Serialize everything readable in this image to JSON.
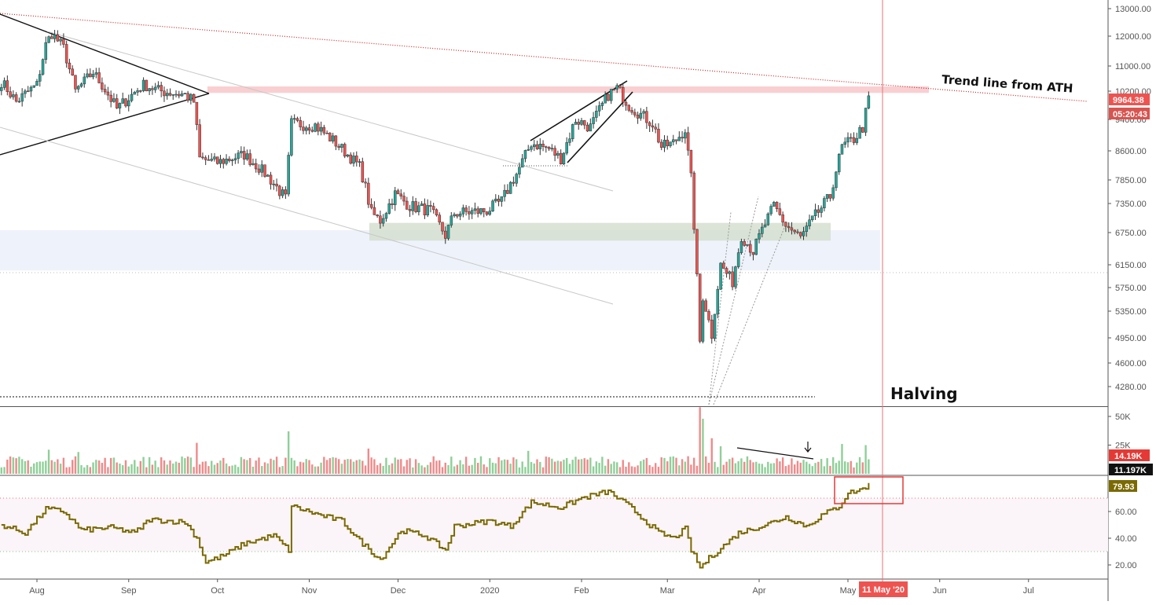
{
  "chart_data": [
    {
      "type": "candlestick",
      "pane": "price",
      "title": "",
      "ylim": [
        4100,
        13200
      ],
      "y_ticks": [
        13000,
        12000,
        11000,
        10200,
        9400,
        8600,
        7850,
        7350,
        6750,
        6150,
        5750,
        5350,
        4950,
        4600,
        4280
      ],
      "y_tick_labels": [
        "13000.00",
        "12000.00",
        "11000.00",
        "10200.00",
        "9400.00",
        "8600.00",
        "7850.00",
        "7350.00",
        "6750.00",
        "6150.00",
        "5750.00",
        "5350.00",
        "4950.00",
        "4600.00",
        "4280.00"
      ],
      "price_path": [
        [
          "2019-07-20",
          10500
        ],
        [
          "2019-07-25",
          9900
        ],
        [
          "2019-08-01",
          10400
        ],
        [
          "2019-08-04",
          11700
        ],
        [
          "2019-08-06",
          12100
        ],
        [
          "2019-08-10",
          11600
        ],
        [
          "2019-08-14",
          10200
        ],
        [
          "2019-08-20",
          10800
        ],
        [
          "2019-08-28",
          9700
        ],
        [
          "2019-09-06",
          10400
        ],
        [
          "2019-09-12",
          10200
        ],
        [
          "2019-09-20",
          10100
        ],
        [
          "2019-09-23",
          9900
        ],
        [
          "2019-09-25",
          8400
        ],
        [
          "2019-10-01",
          8300
        ],
        [
          "2019-10-10",
          8500
        ],
        [
          "2019-10-16",
          8100
        ],
        [
          "2019-10-24",
          7450
        ],
        [
          "2019-10-26",
          9300
        ],
        [
          "2019-11-03",
          9250
        ],
        [
          "2019-11-10",
          8800
        ],
        [
          "2019-11-18",
          8200
        ],
        [
          "2019-11-22",
          7150
        ],
        [
          "2019-11-25",
          7000
        ],
        [
          "2019-11-30",
          7550
        ],
        [
          "2019-12-05",
          7300
        ],
        [
          "2019-12-12",
          7200
        ],
        [
          "2019-12-17",
          6700
        ],
        [
          "2019-12-20",
          7150
        ],
        [
          "2019-12-31",
          7200
        ],
        [
          "2020-01-05",
          7400
        ],
        [
          "2020-01-10",
          8000
        ],
        [
          "2020-01-15",
          8800
        ],
        [
          "2020-01-21",
          8650
        ],
        [
          "2020-01-25",
          8400
        ],
        [
          "2020-01-30",
          9400
        ],
        [
          "2020-02-04",
          9200
        ],
        [
          "2020-02-10",
          10100
        ],
        [
          "2020-02-13",
          10300
        ],
        [
          "2020-02-17",
          9800
        ],
        [
          "2020-02-20",
          9600
        ],
        [
          "2020-02-25",
          9300
        ],
        [
          "2020-02-28",
          8700
        ],
        [
          "2020-03-03",
          8800
        ],
        [
          "2020-03-07",
          9150
        ],
        [
          "2020-03-09",
          7900
        ],
        [
          "2020-03-12",
          4900
        ],
        [
          "2020-03-13",
          5600
        ],
        [
          "2020-03-16",
          5000
        ],
        [
          "2020-03-19",
          6150
        ],
        [
          "2020-03-23",
          5850
        ],
        [
          "2020-03-26",
          6700
        ],
        [
          "2020-03-30",
          6400
        ],
        [
          "2020-04-02",
          6800
        ],
        [
          "2020-04-06",
          7300
        ],
        [
          "2020-04-10",
          6900
        ],
        [
          "2020-04-15",
          6650
        ],
        [
          "2020-04-20",
          7100
        ],
        [
          "2020-04-25",
          7500
        ],
        [
          "2020-04-29",
          8700
        ],
        [
          "2020-05-03",
          8900
        ],
        [
          "2020-05-06",
          9200
        ],
        [
          "2020-05-08",
          9964
        ]
      ],
      "last_price": "9964.38",
      "last_price_countdown": "05:20:43"
    },
    {
      "type": "bar",
      "pane": "volume",
      "ylim": [
        0,
        56000
      ],
      "y_ticks": [
        50000,
        25000
      ],
      "y_tick_labels": [
        "50K",
        "25K"
      ],
      "typical_volume": 11000,
      "spikes": [
        [
          "2019-08-05",
          21000
        ],
        [
          "2019-08-15",
          19000
        ],
        [
          "2019-09-24",
          27000
        ],
        [
          "2019-10-25",
          37000
        ],
        [
          "2019-11-21",
          22000
        ],
        [
          "2020-01-14",
          20000
        ],
        [
          "2020-03-12",
          58000
        ],
        [
          "2020-03-13",
          48000
        ],
        [
          "2020-03-16",
          31000
        ],
        [
          "2020-03-19",
          24000
        ],
        [
          "2020-04-29",
          26000
        ],
        [
          "2020-05-07",
          25000
        ]
      ],
      "tag_value_1": "14.19K",
      "tag_value_2": "11.197K"
    },
    {
      "type": "line",
      "pane": "rsi",
      "ylim": [
        10,
        90
      ],
      "y_ticks": [
        60,
        40,
        20
      ],
      "y_tick_labels": [
        "60.00",
        "40.00",
        "20.00"
      ],
      "upper_band": 70,
      "lower_band": 30,
      "rsi_path": [
        [
          "2019-07-20",
          50
        ],
        [
          "2019-07-28",
          44
        ],
        [
          "2019-08-04",
          62
        ],
        [
          "2019-08-10",
          60
        ],
        [
          "2019-08-16",
          46
        ],
        [
          "2019-08-26",
          48
        ],
        [
          "2019-09-03",
          44
        ],
        [
          "2019-09-08",
          54
        ],
        [
          "2019-09-20",
          52
        ],
        [
          "2019-09-24",
          40
        ],
        [
          "2019-09-27",
          22
        ],
        [
          "2019-10-03",
          27
        ],
        [
          "2019-10-10",
          36
        ],
        [
          "2019-10-20",
          42
        ],
        [
          "2019-10-25",
          31
        ],
        [
          "2019-10-26",
          64
        ],
        [
          "2019-11-05",
          57
        ],
        [
          "2019-11-12",
          53
        ],
        [
          "2019-11-18",
          38
        ],
        [
          "2019-11-25",
          24
        ],
        [
          "2019-12-02",
          46
        ],
        [
          "2019-12-10",
          42
        ],
        [
          "2019-12-17",
          31
        ],
        [
          "2019-12-20",
          49
        ],
        [
          "2020-01-01",
          53
        ],
        [
          "2020-01-08",
          49
        ],
        [
          "2020-01-15",
          67
        ],
        [
          "2020-01-25",
          63
        ],
        [
          "2020-02-01",
          70
        ],
        [
          "2020-02-10",
          75
        ],
        [
          "2020-02-17",
          64
        ],
        [
          "2020-02-27",
          44
        ],
        [
          "2020-03-03",
          40
        ],
        [
          "2020-03-07",
          47
        ],
        [
          "2020-03-09",
          31
        ],
        [
          "2020-03-12",
          18
        ],
        [
          "2020-03-15",
          25
        ],
        [
          "2020-03-25",
          44
        ],
        [
          "2020-04-03",
          50
        ],
        [
          "2020-04-10",
          56
        ],
        [
          "2020-04-17",
          49
        ],
        [
          "2020-04-22",
          57
        ],
        [
          "2020-04-28",
          64
        ],
        [
          "2020-05-01",
          74
        ],
        [
          "2020-05-05",
          76
        ],
        [
          "2020-05-08",
          79.93
        ]
      ],
      "last_value": "79.93"
    }
  ],
  "x_axis": {
    "labels": [
      {
        "date": "2019-08-01",
        "text": "Aug"
      },
      {
        "date": "2019-09-01",
        "text": "Sep"
      },
      {
        "date": "2019-10-01",
        "text": "Oct"
      },
      {
        "date": "2019-11-01",
        "text": "Nov"
      },
      {
        "date": "2019-12-01",
        "text": "Dec"
      },
      {
        "date": "2020-01-01",
        "text": "2020"
      },
      {
        "date": "2020-02-01",
        "text": "Feb"
      },
      {
        "date": "2020-03-01",
        "text": "Mar"
      },
      {
        "date": "2020-04-01",
        "text": "Apr"
      },
      {
        "date": "2020-05-01",
        "text": "May"
      },
      {
        "date": "2020-06-01",
        "text": "Jun"
      },
      {
        "date": "2020-07-01",
        "text": "Jul"
      }
    ],
    "highlight_label": "11 May '20",
    "highlight_date": "2020-05-11"
  },
  "annotations": {
    "trend_label": "Trend line from ATH",
    "halving_label": "Halving",
    "halving_date": "2020-05-11",
    "resistance_zone": [
      10150,
      10350
    ],
    "support_zone_green": [
      6600,
      6950
    ],
    "support_zone_blue": [
      6050,
      6800
    ]
  },
  "colors": {
    "up": "#26a69a",
    "down": "#ef5350",
    "volume_up": "#8fcf98",
    "volume_down": "#ef8a8a",
    "rsi_line": "#7a6a00",
    "trend_dotted": "#c62828",
    "halving_line": "#e57373",
    "resistance_zone": "#f9cfd2",
    "green_zone": "#d5dfcf",
    "blue_zone": "#eef2fb",
    "price_tag": "#ef5350",
    "countdown_tag": "#d9534f",
    "volume_tag_red": "#e53935",
    "volume_tag_black": "#111111",
    "rsi_tag": "#7a6a00",
    "highlight_tag": "#ef5350",
    "box_red": "#e53935"
  }
}
